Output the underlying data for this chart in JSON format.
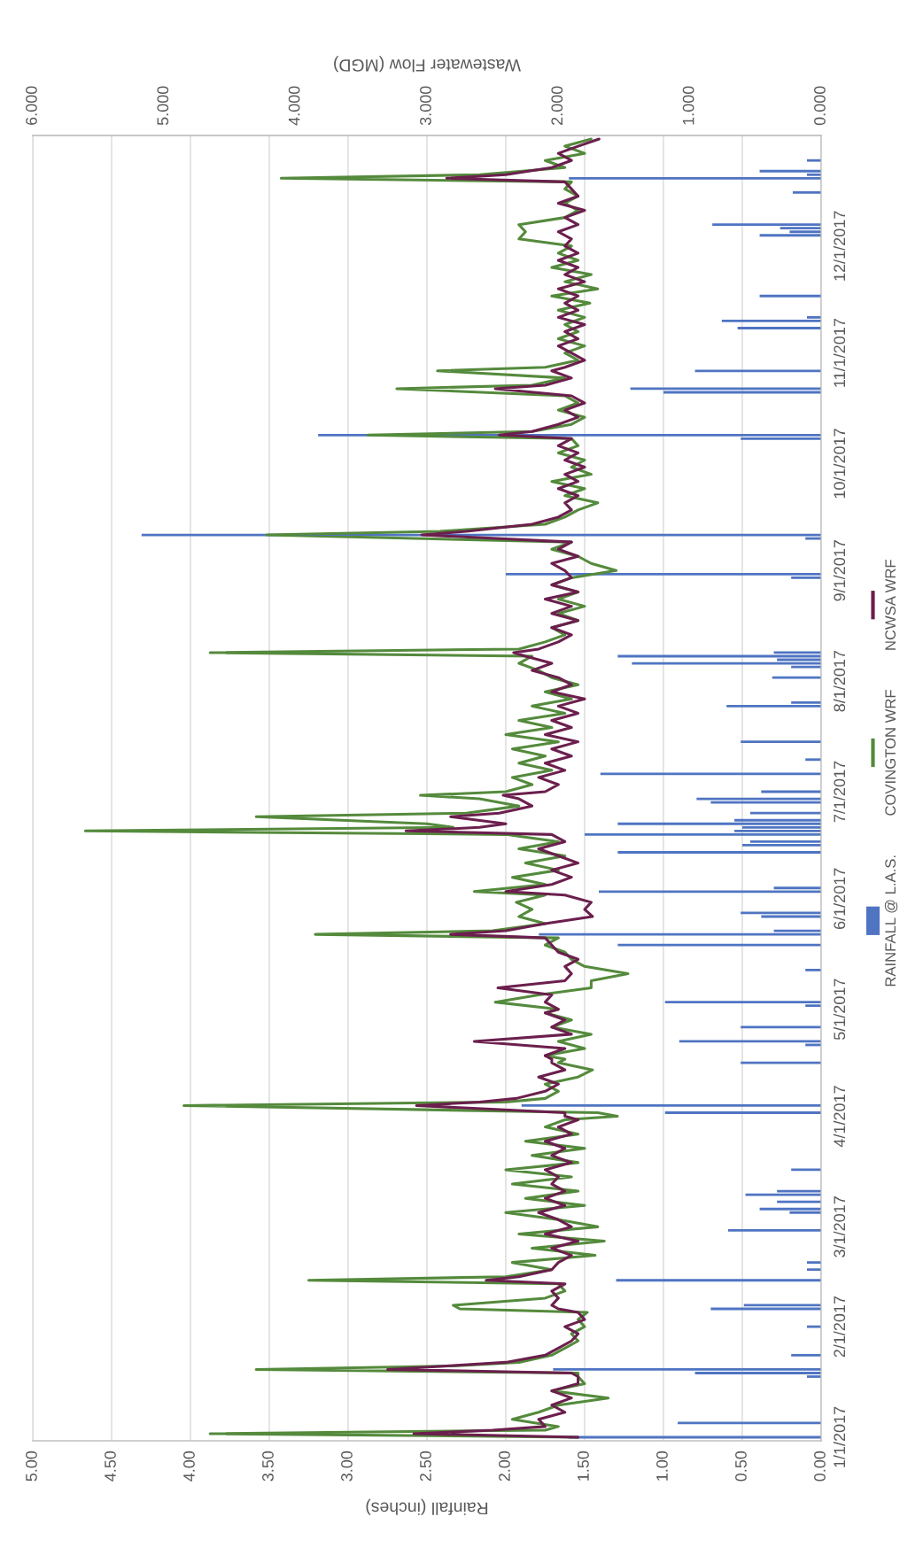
{
  "chart_data": {
    "type": "bar",
    "orientation": "horizontal",
    "xlabel": "Rainfall (inches)",
    "x2label": "Wastewater Flow (MGD)",
    "xlim": [
      5,
      0
    ],
    "xticks": [
      {
        "value": 0,
        "label": "0.00"
      },
      {
        "value": 0.5,
        "label": "0.50"
      },
      {
        "value": 1,
        "label": "1.00"
      },
      {
        "value": 1.5,
        "label": "1.50"
      },
      {
        "value": 2,
        "label": "2.00"
      },
      {
        "value": 2.5,
        "label": "2.50"
      },
      {
        "value": 3,
        "label": "3.00"
      },
      {
        "value": 3.5,
        "label": "3.50"
      },
      {
        "value": 4,
        "label": "4.00"
      },
      {
        "value": 4.5,
        "label": "4.50"
      },
      {
        "value": 5,
        "label": "5.00"
      }
    ],
    "x2lim": [
      6,
      0
    ],
    "x2ticks": [
      {
        "value": 0,
        "label": "0.000"
      },
      {
        "value": 1,
        "label": "1.000"
      },
      {
        "value": 2,
        "label": "2.000"
      },
      {
        "value": 3,
        "label": "3.000"
      },
      {
        "value": 4,
        "label": "4.000"
      },
      {
        "value": 5,
        "label": "5.000"
      },
      {
        "value": 6,
        "label": "6.000"
      }
    ],
    "ylim": [
      "2016-12-31",
      "2018-01-01"
    ],
    "yticks": [
      {
        "value": "2017-01-01",
        "label": "1/1/2017"
      },
      {
        "value": "2017-02-01",
        "label": "2/1/2017"
      },
      {
        "value": "2017-03-01",
        "label": "3/1/2017"
      },
      {
        "value": "2017-04-01",
        "label": "4/1/2017"
      },
      {
        "value": "2017-05-01",
        "label": "5/1/2017"
      },
      {
        "value": "2017-06-01",
        "label": "6/1/2017"
      },
      {
        "value": "2017-07-01",
        "label": "7/1/2017"
      },
      {
        "value": "2017-08-01",
        "label": "8/1/2017"
      },
      {
        "value": "2017-09-01",
        "label": "9/1/2017"
      },
      {
        "value": "2017-10-01",
        "label": "10/1/2017"
      },
      {
        "value": "2017-11-01",
        "label": "11/1/2017"
      },
      {
        "value": "2017-12-01",
        "label": "12/1/2017"
      }
    ],
    "grid": "x",
    "legend": "right",
    "x": [
      "2017-01-01",
      "2017-01-02",
      "2017-01-03",
      "2017-01-04",
      "2017-01-06",
      "2017-01-08",
      "2017-01-10",
      "2017-01-12",
      "2017-01-14",
      "2017-01-16",
      "2017-01-18",
      "2017-01-19",
      "2017-01-20",
      "2017-01-21",
      "2017-01-22",
      "2017-01-24",
      "2017-01-26",
      "2017-01-28",
      "2017-01-30",
      "2017-02-01",
      "2017-02-03",
      "2017-02-05",
      "2017-02-06",
      "2017-02-07",
      "2017-02-09",
      "2017-02-11",
      "2017-02-13",
      "2017-02-14",
      "2017-02-15",
      "2017-02-17",
      "2017-02-19",
      "2017-02-21",
      "2017-02-23",
      "2017-02-25",
      "2017-02-27",
      "2017-03-01",
      "2017-03-03",
      "2017-03-05",
      "2017-03-07",
      "2017-03-09",
      "2017-03-11",
      "2017-03-13",
      "2017-03-15",
      "2017-03-17",
      "2017-03-19",
      "2017-03-21",
      "2017-03-23",
      "2017-03-25",
      "2017-03-27",
      "2017-03-29",
      "2017-03-31",
      "2017-04-01",
      "2017-04-02",
      "2017-04-04",
      "2017-04-05",
      "2017-04-06",
      "2017-04-08",
      "2017-04-10",
      "2017-04-12",
      "2017-04-14",
      "2017-04-16",
      "2017-04-17",
      "2017-04-18",
      "2017-04-20",
      "2017-04-22",
      "2017-04-24",
      "2017-04-26",
      "2017-04-28",
      "2017-04-30",
      "2017-05-01",
      "2017-05-03",
      "2017-05-05",
      "2017-05-07",
      "2017-05-09",
      "2017-05-11",
      "2017-05-13",
      "2017-05-15",
      "2017-05-17",
      "2017-05-19",
      "2017-05-21",
      "2017-05-22",
      "2017-05-23",
      "2017-05-25",
      "2017-05-27",
      "2017-05-29",
      "2017-05-31",
      "2017-06-02",
      "2017-06-03",
      "2017-06-05",
      "2017-06-07",
      "2017-06-09",
      "2017-06-11",
      "2017-06-13",
      "2017-06-15",
      "2017-06-17",
      "2017-06-19",
      "2017-06-20",
      "2017-06-21",
      "2017-06-22",
      "2017-06-24",
      "2017-06-25",
      "2017-06-27",
      "2017-06-29",
      "2017-06-30",
      "2017-07-01",
      "2017-07-03",
      "2017-07-05",
      "2017-07-07",
      "2017-07-09",
      "2017-07-11",
      "2017-07-13",
      "2017-07-15",
      "2017-07-17",
      "2017-07-19",
      "2017-07-21",
      "2017-07-23",
      "2017-07-25",
      "2017-07-27",
      "2017-07-29",
      "2017-07-31",
      "2017-08-02",
      "2017-08-04",
      "2017-08-06",
      "2017-08-08",
      "2017-08-09",
      "2017-08-10",
      "2017-08-12",
      "2017-08-14",
      "2017-08-16",
      "2017-08-18",
      "2017-08-20",
      "2017-08-22",
      "2017-08-24",
      "2017-08-26",
      "2017-08-28",
      "2017-08-30",
      "2017-09-01",
      "2017-09-03",
      "2017-09-05",
      "2017-09-07",
      "2017-09-09",
      "2017-09-11",
      "2017-09-12",
      "2017-09-14",
      "2017-09-16",
      "2017-09-18",
      "2017-09-20",
      "2017-09-22",
      "2017-09-24",
      "2017-09-26",
      "2017-09-28",
      "2017-09-30",
      "2017-10-02",
      "2017-10-04",
      "2017-10-06",
      "2017-10-08",
      "2017-10-09",
      "2017-10-10",
      "2017-10-12",
      "2017-10-14",
      "2017-10-16",
      "2017-10-18",
      "2017-10-20",
      "2017-10-22",
      "2017-10-23",
      "2017-10-25",
      "2017-10-27",
      "2017-10-28",
      "2017-10-30",
      "2017-11-01",
      "2017-11-03",
      "2017-11-05",
      "2017-11-07",
      "2017-11-09",
      "2017-11-11",
      "2017-11-13",
      "2017-11-15",
      "2017-11-17",
      "2017-11-19",
      "2017-11-21",
      "2017-11-23",
      "2017-11-25",
      "2017-11-27",
      "2017-11-29",
      "2017-12-01",
      "2017-12-03",
      "2017-12-05",
      "2017-12-07",
      "2017-12-09",
      "2017-12-11",
      "2017-12-13",
      "2017-12-15",
      "2017-12-17",
      "2017-12-19",
      "2017-12-20",
      "2017-12-21",
      "2017-12-23",
      "2017-12-25",
      "2017-12-27",
      "2017-12-29",
      "2017-12-31"
    ],
    "series": [
      {
        "name": "RAINFALL @ L.A.S.",
        "color": "#4f74c2",
        "x": [
          "2017-01-01",
          "2017-01-05",
          "2017-01-18",
          "2017-01-19",
          "2017-01-20",
          "2017-01-24",
          "2017-02-01",
          "2017-02-06",
          "2017-02-07",
          "2017-02-14",
          "2017-02-17",
          "2017-02-19",
          "2017-02-28",
          "2017-03-05",
          "2017-03-06",
          "2017-03-08",
          "2017-03-10",
          "2017-03-11",
          "2017-03-17",
          "2017-04-02",
          "2017-04-04",
          "2017-04-16",
          "2017-04-21",
          "2017-04-22",
          "2017-04-26",
          "2017-05-02",
          "2017-05-03",
          "2017-05-12",
          "2017-05-19",
          "2017-05-22",
          "2017-05-23",
          "2017-05-27",
          "2017-05-28",
          "2017-06-03",
          "2017-06-04",
          "2017-06-14",
          "2017-06-16",
          "2017-06-17",
          "2017-06-19",
          "2017-06-20",
          "2017-06-21",
          "2017-06-22",
          "2017-06-23",
          "2017-06-25",
          "2017-06-28",
          "2017-06-29",
          "2017-07-01",
          "2017-07-06",
          "2017-07-10",
          "2017-07-15",
          "2017-07-25",
          "2017-07-26",
          "2017-08-02",
          "2017-08-05",
          "2017-08-06",
          "2017-08-07",
          "2017-08-08",
          "2017-08-09",
          "2017-08-30",
          "2017-08-31",
          "2017-09-10",
          "2017-09-11",
          "2017-10-08",
          "2017-10-09",
          "2017-10-21",
          "2017-10-22",
          "2017-10-27",
          "2017-11-08",
          "2017-11-10",
          "2017-11-11",
          "2017-11-17",
          "2017-12-04",
          "2017-12-05",
          "2017-12-06",
          "2017-12-07",
          "2017-12-16",
          "2017-12-20",
          "2017-12-21",
          "2017-12-22",
          "2017-12-25"
        ],
        "values": [
          1.6,
          0.91,
          0.09,
          0.8,
          1.7,
          0.19,
          0.09,
          0.7,
          0.49,
          1.3,
          0.09,
          0.09,
          0.59,
          0.2,
          0.39,
          0.28,
          0.48,
          0.28,
          0.19,
          0.99,
          1.9,
          0.51,
          0.1,
          0.9,
          0.51,
          0.1,
          0.99,
          0.1,
          1.29,
          1.79,
          0.3,
          0.38,
          0.51,
          1.41,
          0.3,
          1.29,
          0.5,
          0.45,
          1.5,
          0.55,
          0.5,
          1.29,
          0.55,
          0.45,
          0.7,
          0.79,
          0.38,
          1.4,
          0.1,
          0.51,
          0.6,
          0.19,
          0.31,
          0.19,
          1.2,
          0.28,
          1.29,
          0.3,
          0.19,
          2.0,
          0.1,
          4.31,
          0.51,
          3.19,
          1.0,
          1.21,
          0.8,
          0.53,
          0.63,
          0.09,
          0.39,
          0.39,
          0.2,
          0.26,
          0.69,
          0.18,
          1.6,
          0.09,
          0.39,
          0.09
        ]
      },
      {
        "name": "COVINGTON WRF",
        "type": "line",
        "axis": "x2",
        "color": "#548a3c",
        "values": [
          1.85,
          4.65,
          2.1,
          2.0,
          2.35,
          2.15,
          2.0,
          1.62,
          2.05,
          1.8,
          1.85,
          1.85,
          4.3,
          2.8,
          2.3,
          2.05,
          1.95,
          1.85,
          1.9,
          1.8,
          1.85,
          1.78,
          2.75,
          2.8,
          2.1,
          1.95,
          2.0,
          3.9,
          2.4,
          2.05,
          2.35,
          1.72,
          2.2,
          1.65,
          2.3,
          1.7,
          2.0,
          2.4,
          1.8,
          2.25,
          1.85,
          2.35,
          1.9,
          2.4,
          1.85,
          2.2,
          1.8,
          2.25,
          1.85,
          2.1,
          1.95,
          1.55,
          1.7,
          4.85,
          2.4,
          2.1,
          2.0,
          2.1,
          1.85,
          1.74,
          2.0,
          1.95,
          2.1,
          1.8,
          2.0,
          1.75,
          2.05,
          1.9,
          2.1,
          2.0,
          2.48,
          2.15,
          1.75,
          1.75,
          1.47,
          1.8,
          1.9,
          1.95,
          2.1,
          2.0,
          3.85,
          2.5,
          2.1,
          2.3,
          2.2,
          2.32,
          2.1,
          2.64,
          2.1,
          2.35,
          2.0,
          2.25,
          1.95,
          2.3,
          2.0,
          2.4,
          5.6,
          2.8,
          3.0,
          4.3,
          2.7,
          2.3,
          2.6,
          3.05,
          2.4,
          2.2,
          2.35,
          2.05,
          2.3,
          2.1,
          2.35,
          2.0,
          2.4,
          2.05,
          2.3,
          1.95,
          2.2,
          1.9,
          2.1,
          1.85,
          2.05,
          2.15,
          2.3,
          2.2,
          4.65,
          2.3,
          2.1,
          1.95,
          2.05,
          1.85,
          2.0,
          1.8,
          2.0,
          1.85,
          2.05,
          1.9,
          1.56,
          1.75,
          1.85,
          2.05,
          1.9,
          4.22,
          2.9,
          2.1,
          1.95,
          1.85,
          1.7,
          1.95,
          1.8,
          2.05,
          1.75,
          1.9,
          1.8,
          2.0,
          1.85,
          1.9,
          3.45,
          2.2,
          1.9,
          1.8,
          2.0,
          1.85,
          1.95,
          3.23,
          2.2,
          1.95,
          2.92,
          2.1,
          1.85,
          1.95,
          1.8,
          2.0,
          1.85,
          1.95,
          1.8,
          2.0,
          1.76,
          2.05,
          1.7,
          1.95,
          1.75,
          2.05,
          1.85,
          2.0,
          1.9,
          2.3,
          2.25,
          2.3,
          1.95,
          1.85,
          1.95,
          1.85,
          1.95,
          1.9,
          4.11,
          2.6,
          1.95,
          2.1,
          1.8,
          1.95,
          1.75
        ]
      },
      {
        "name": "NCWSA WRF",
        "type": "line",
        "axis": "x2",
        "color": "#6b1f4d",
        "values": [
          1.85,
          3.1,
          2.5,
          2.1,
          2.15,
          1.95,
          2.05,
          1.9,
          2.05,
          1.85,
          1.85,
          1.9,
          3.3,
          2.85,
          2.4,
          2.1,
          2.0,
          1.9,
          1.85,
          1.95,
          1.8,
          1.85,
          2.0,
          2.05,
          2.0,
          2.05,
          1.95,
          2.55,
          2.3,
          2.05,
          2.0,
          1.9,
          2.05,
          1.85,
          2.1,
          1.9,
          2.0,
          2.15,
          1.95,
          2.1,
          1.95,
          2.05,
          2.0,
          2.1,
          1.9,
          2.05,
          1.95,
          2.1,
          1.9,
          2.0,
          1.85,
          1.95,
          1.95,
          3.08,
          2.6,
          2.32,
          2.1,
          2.0,
          2.15,
          1.95,
          2.05,
          2.05,
          2.1,
          1.95,
          2.64,
          1.9,
          2.05,
          1.95,
          2.1,
          2.0,
          2.1,
          2.05,
          2.46,
          1.95,
          1.9,
          1.95,
          1.85,
          2.0,
          2.05,
          2.1,
          2.82,
          2.4,
          2.1,
          1.74,
          1.8,
          1.75,
          1.95,
          2.4,
          2.05,
          1.9,
          2.05,
          1.85,
          2.0,
          2.15,
          1.95,
          2.05,
          3.16,
          2.6,
          2.4,
          2.82,
          2.45,
          2.2,
          2.3,
          2.42,
          2.1,
          2.0,
          2.15,
          1.95,
          2.1,
          1.9,
          2.05,
          1.85,
          2.1,
          1.9,
          2.05,
          1.85,
          2.0,
          1.8,
          2.05,
          1.9,
          2.0,
          2.2,
          2.05,
          2.25,
          2.34,
          2.15,
          2.0,
          1.9,
          2.05,
          1.85,
          2.05,
          1.9,
          2.1,
          1.85,
          2.05,
          1.9,
          1.95,
          2.05,
          1.85,
          2.0,
          1.9,
          3.04,
          2.7,
          2.2,
          2.0,
          1.9,
          1.95,
          1.85,
          2.0,
          1.85,
          1.95,
          1.8,
          1.95,
          1.85,
          2.0,
          1.9,
          2.45,
          2.2,
          2.0,
          1.85,
          1.95,
          1.8,
          1.9,
          2.48,
          2.1,
          1.9,
          2.05,
          1.95,
          1.8,
          1.9,
          2.0,
          1.85,
          1.95,
          1.8,
          2.0,
          1.85,
          1.95,
          1.85,
          2.0,
          1.8,
          1.95,
          1.85,
          2.0,
          1.85,
          1.95,
          1.9,
          2.0,
          1.85,
          1.95,
          1.8,
          2.0,
          1.85,
          1.9,
          1.95,
          2.85,
          2.4,
          2.05,
          1.9,
          2.0,
          1.85,
          1.69
        ]
      }
    ]
  }
}
